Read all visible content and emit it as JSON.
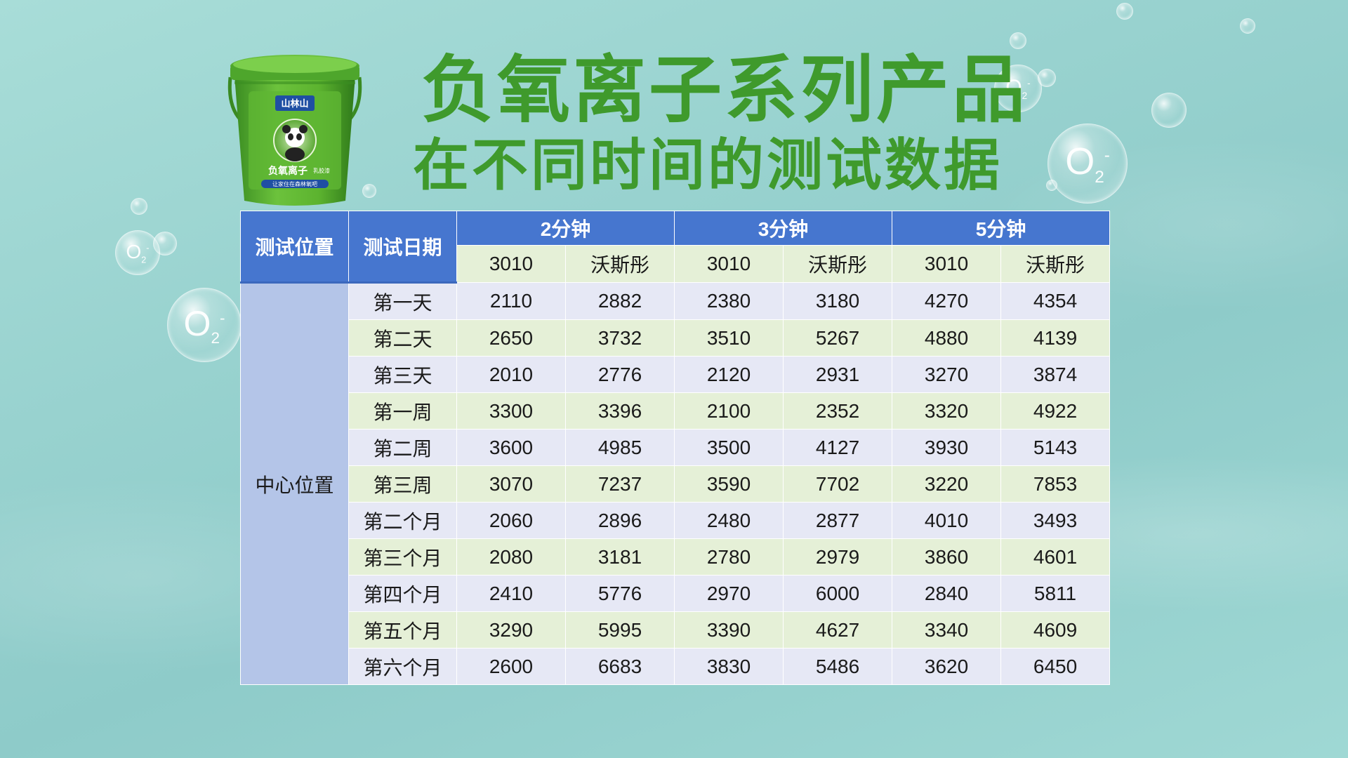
{
  "title": {
    "line1": "负氧离子系列产品",
    "line2": "在不同时间的测试数据"
  },
  "product": {
    "brand": "山林山",
    "name": "负氧离子",
    "subname": "乳胶漆",
    "slogan": "让家住在森林氧吧"
  },
  "bubbles": {
    "label": "O",
    "sub": "2",
    "sup": "-"
  },
  "colors": {
    "title_green": "#3f9a2c",
    "header_blue": "#4676cf",
    "row_lavender": "#e6e8f5",
    "row_green": "#e5f0d7",
    "location_blue": "#b4c5e8"
  },
  "table": {
    "headers": {
      "location": "测试位置",
      "date": "测试日期",
      "groups": [
        "2分钟",
        "3分钟",
        "5分钟"
      ],
      "sub": [
        "3010",
        "沃斯彤",
        "3010",
        "沃斯彤",
        "3010",
        "沃斯彤"
      ]
    },
    "location": "中心位置",
    "rows": [
      {
        "date": "第一天",
        "values": [
          "2110",
          "2882",
          "2380",
          "3180",
          "4270",
          "4354"
        ]
      },
      {
        "date": "第二天",
        "values": [
          "2650",
          "3732",
          "3510",
          "5267",
          "4880",
          "4139"
        ]
      },
      {
        "date": "第三天",
        "values": [
          "2010",
          "2776",
          "2120",
          "2931",
          "3270",
          "3874"
        ]
      },
      {
        "date": "第一周",
        "values": [
          "3300",
          "3396",
          "2100",
          "2352",
          "3320",
          "4922"
        ]
      },
      {
        "date": "第二周",
        "values": [
          "3600",
          "4985",
          "3500",
          "4127",
          "3930",
          "5143"
        ]
      },
      {
        "date": "第三周",
        "values": [
          "3070",
          "7237",
          "3590",
          "7702",
          "3220",
          "7853"
        ]
      },
      {
        "date": "第二个月",
        "values": [
          "2060",
          "2896",
          "2480",
          "2877",
          "4010",
          "3493"
        ]
      },
      {
        "date": "第三个月",
        "values": [
          "2080",
          "3181",
          "2780",
          "2979",
          "3860",
          "4601"
        ]
      },
      {
        "date": "第四个月",
        "values": [
          "2410",
          "5776",
          "2970",
          "6000",
          "2840",
          "5811"
        ]
      },
      {
        "date": "第五个月",
        "values": [
          "3290",
          "5995",
          "3390",
          "4627",
          "3340",
          "4609"
        ]
      },
      {
        "date": "第六个月",
        "values": [
          "2600",
          "6683",
          "3830",
          "5486",
          "3620",
          "6450"
        ]
      }
    ]
  }
}
